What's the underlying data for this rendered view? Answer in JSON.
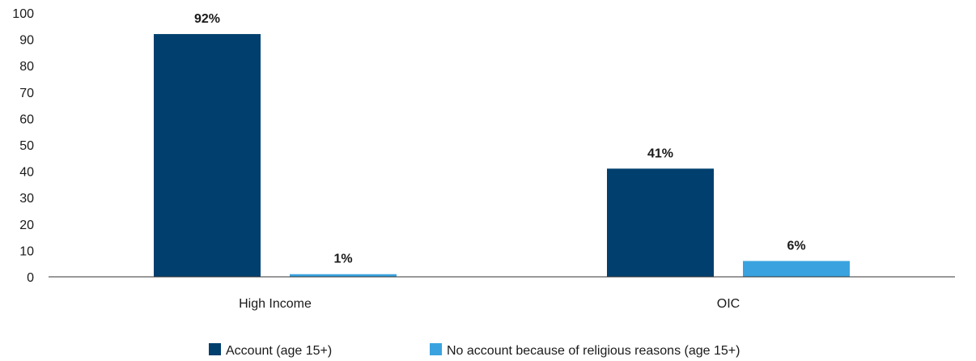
{
  "chart_data": {
    "type": "bar",
    "title": "",
    "xlabel": "",
    "ylabel": "",
    "ylim": [
      0,
      100
    ],
    "yticks": [
      0,
      10,
      20,
      30,
      40,
      50,
      60,
      70,
      80,
      90,
      100
    ],
    "grid": false,
    "legend_position": "bottom",
    "categories": [
      "High Income",
      "OIC"
    ],
    "series": [
      {
        "name": "Account (age 15+)",
        "color": "#003f6e",
        "values": [
          92,
          41
        ],
        "labels": [
          "92%",
          "41%"
        ]
      },
      {
        "name": "No account because of religious reasons (age 15+)",
        "color": "#3aa3df",
        "values": [
          1,
          6
        ],
        "labels": [
          "1%",
          "6%"
        ]
      }
    ]
  }
}
